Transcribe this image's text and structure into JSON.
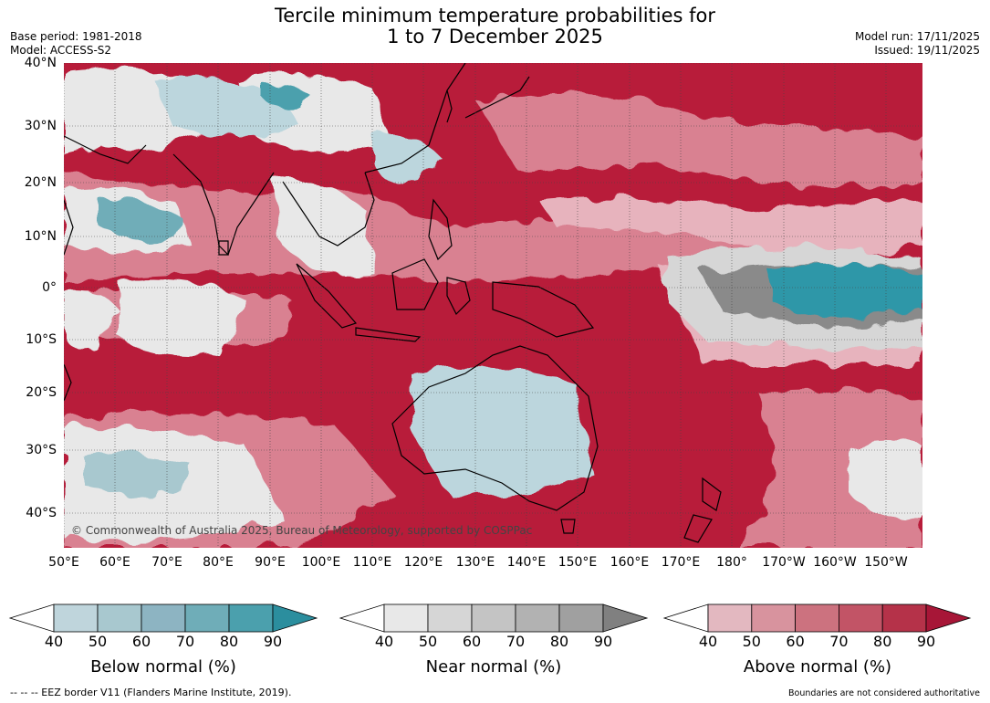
{
  "header": {
    "title_line1": "Tercile minimum temperature probabilities for",
    "title_line2": "1 to 7 December 2025",
    "base_period": "Base period: 1981-2018",
    "model": "Model: ACCESS-S2",
    "model_run": "Model run: 17/11/2025",
    "issued": "Issued: 19/11/2025"
  },
  "map": {
    "lat_labels": [
      "40°N",
      "30°N",
      "20°N",
      "10°N",
      "0°",
      "10°S",
      "20°S",
      "30°S",
      "40°S"
    ],
    "lon_labels": [
      "50°E",
      "60°E",
      "70°E",
      "80°E",
      "90°E",
      "100°E",
      "110°E",
      "120°E",
      "130°E",
      "140°E",
      "150°E",
      "160°E",
      "170°E",
      "180°",
      "170°W",
      "160°W",
      "150°W"
    ],
    "copyright": "© Commonwealth of Australia 2025, Bureau of Meteorology, supported by COSPPac",
    "colors": {
      "ocean_base": "#b81c3a",
      "above_light": "#e7b3bd",
      "above_mid": "#d98191",
      "near_light": "#e8e8e8",
      "near_dark": "#8a8a8a",
      "below_light": "#bcd6dd",
      "below_dark": "#2f97a8"
    }
  },
  "colorbars": [
    {
      "label": "Below normal (%)",
      "ticks": [
        "40",
        "50",
        "60",
        "70",
        "80",
        "90"
      ],
      "colors": [
        "#ffffff",
        "#bfd5dc",
        "#a8c8cf",
        "#8db4c2",
        "#6fadb8",
        "#4ba0ad",
        "#2b8e9e"
      ]
    },
    {
      "label": "Near normal (%)",
      "ticks": [
        "40",
        "50",
        "60",
        "70",
        "80",
        "90"
      ],
      "colors": [
        "#ffffff",
        "#e8e8e8",
        "#d6d6d6",
        "#c4c4c4",
        "#b2b2b2",
        "#a0a0a0",
        "#808080"
      ]
    },
    {
      "label": "Above normal (%)",
      "ticks": [
        "40",
        "50",
        "60",
        "70",
        "80",
        "90"
      ],
      "colors": [
        "#ffffff",
        "#e3b8c0",
        "#d8939e",
        "#cc727f",
        "#c25466",
        "#b53249",
        "#a71637"
      ]
    }
  ],
  "footer": {
    "left": "--  --  -- EEZ border V11 (Flanders Marine Institute, 2019).",
    "right": "Boundaries are not considered authoritative"
  }
}
